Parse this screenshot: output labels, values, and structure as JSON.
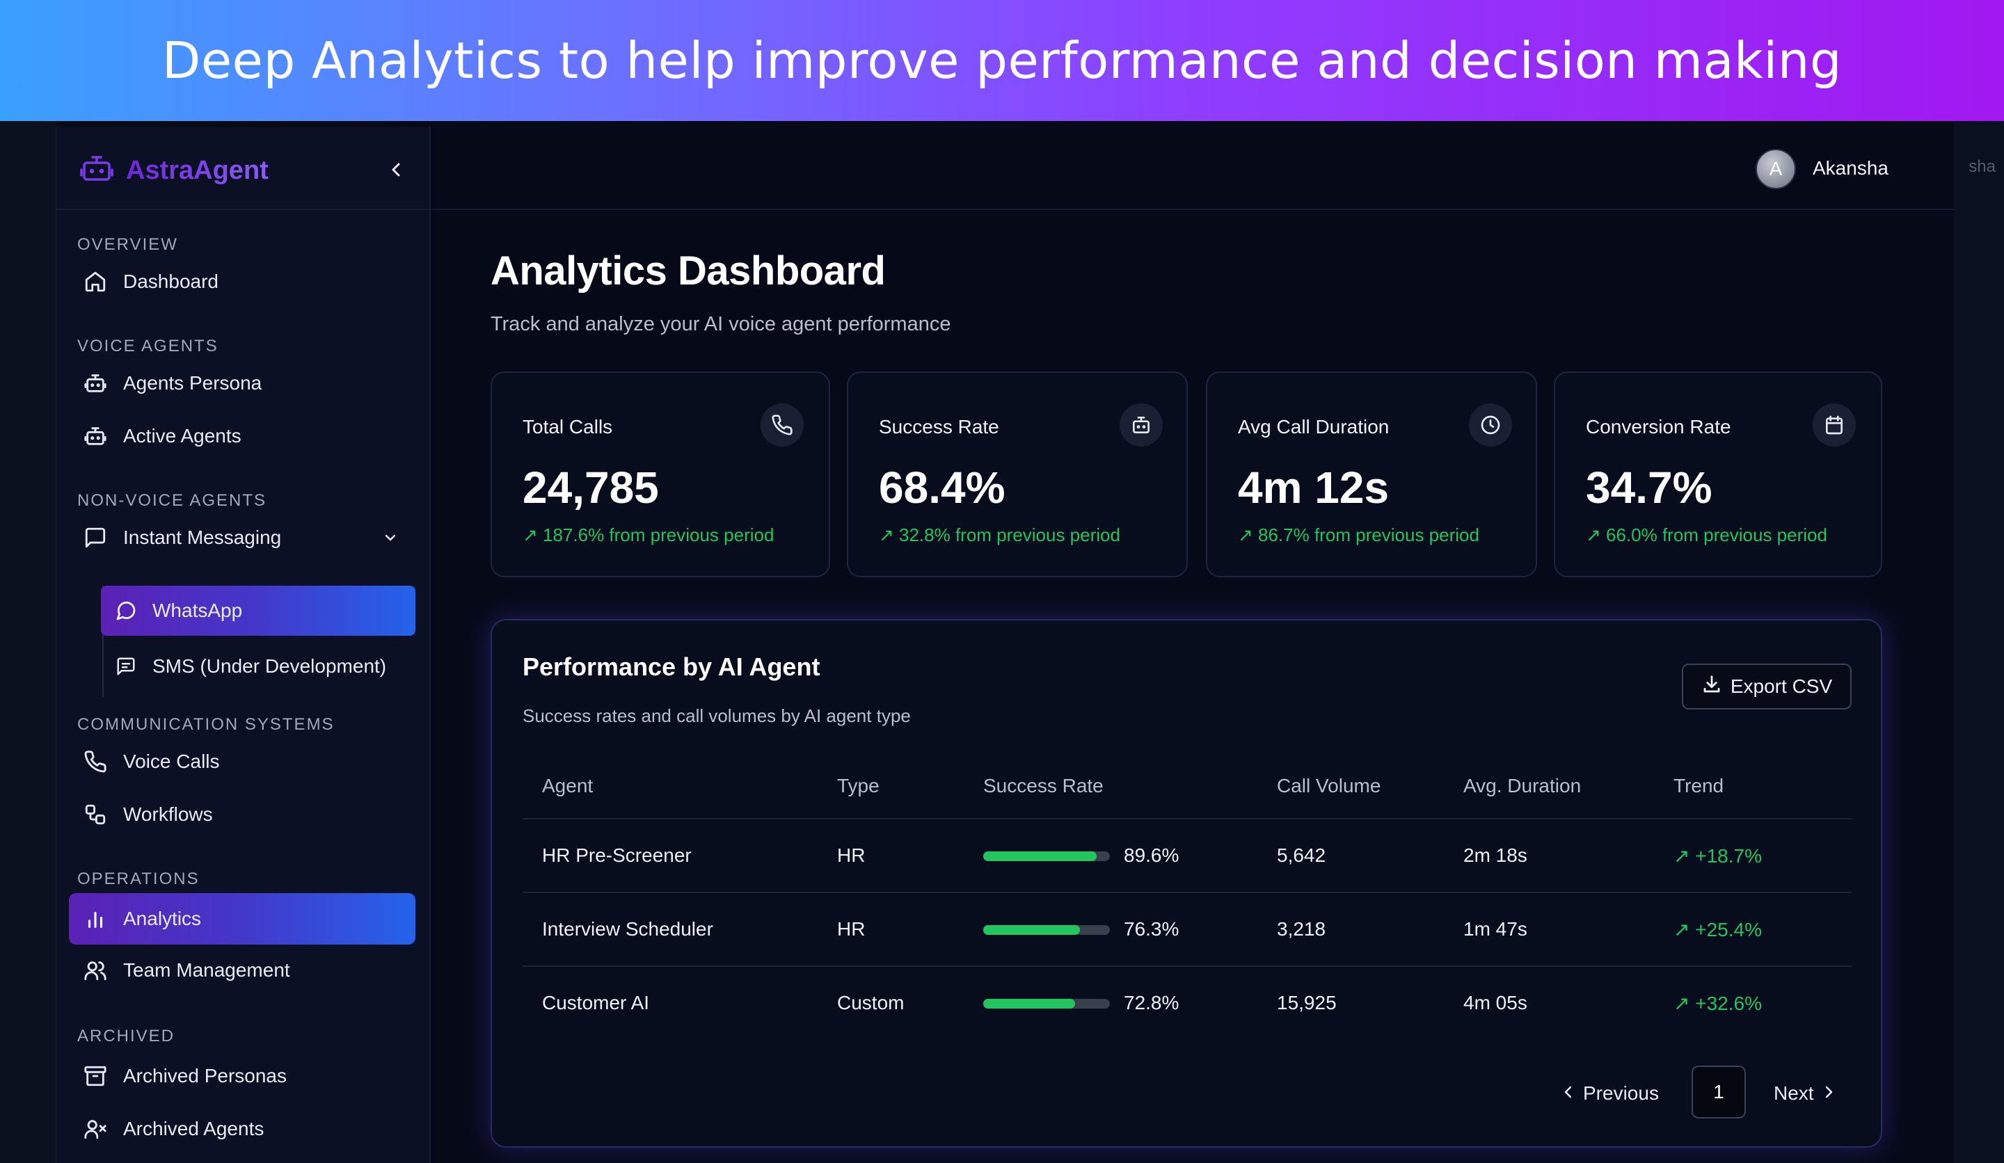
{
  "banner": {
    "text": "Deep Analytics to help improve performance and decision making"
  },
  "frame": {
    "ghost_text": "sha"
  },
  "brand": {
    "name": "AstraAgent"
  },
  "user": {
    "initial": "A",
    "name": "Akansha"
  },
  "sidebar": {
    "sections": {
      "overview": "OVERVIEW",
      "voice_agents": "VOICE AGENTS",
      "non_voice_agents": "NON-VOICE AGENTS",
      "communication_systems": "COMMUNICATION SYSTEMS",
      "operations": "OPERATIONS",
      "archived": "ARCHIVED"
    },
    "items": {
      "dashboard": "Dashboard",
      "agents_persona": "Agents Persona",
      "active_agents": "Active Agents",
      "instant_messaging": "Instant Messaging",
      "whatsapp": "WhatsApp",
      "sms": "SMS (Under Development)",
      "voice_calls": "Voice Calls",
      "workflows": "Workflows",
      "analytics": "Analytics",
      "team_management": "Team Management",
      "archived_personas": "Archived Personas",
      "archived_agents": "Archived Agents"
    },
    "active_item": "Analytics"
  },
  "page": {
    "title": "Analytics Dashboard",
    "subtitle": "Track and analyze your AI voice agent performance"
  },
  "stats": [
    {
      "title": "Total Calls",
      "value": "24,785",
      "delta": "187.6% from previous period",
      "icon": "phone-icon"
    },
    {
      "title": "Success Rate",
      "value": "68.4%",
      "delta": "32.8% from previous period",
      "icon": "bot-icon"
    },
    {
      "title": "Avg Call Duration",
      "value": "4m 12s",
      "delta": "86.7% from previous period",
      "icon": "clock-icon"
    },
    {
      "title": "Conversion Rate",
      "value": "34.7%",
      "delta": "66.0% from previous period",
      "icon": "calendar-icon"
    }
  ],
  "performance": {
    "title": "Performance by AI Agent",
    "subtitle": "Success rates and call volumes by AI agent type",
    "export_label": "Export CSV",
    "columns": [
      "Agent",
      "Type",
      "Success Rate",
      "Call Volume",
      "Avg. Duration",
      "Trend"
    ],
    "rows": [
      {
        "agent": "HR Pre-Screener",
        "type": "HR",
        "success_rate": "89.6%",
        "success_fraction": 0.896,
        "call_volume": "5,642",
        "avg_duration": "2m 18s",
        "trend": "+18.7%"
      },
      {
        "agent": "Interview Scheduler",
        "type": "HR",
        "success_rate": "76.3%",
        "success_fraction": 0.763,
        "call_volume": "3,218",
        "avg_duration": "1m 47s",
        "trend": "+25.4%"
      },
      {
        "agent": "Customer AI",
        "type": "Custom",
        "success_rate": "72.8%",
        "success_fraction": 0.728,
        "call_volume": "15,925",
        "avg_duration": "4m 05s",
        "trend": "+32.6%"
      }
    ],
    "pagination": {
      "previous": "Previous",
      "page": "1",
      "next": "Next"
    }
  },
  "colors": {
    "accent": "#5b21b6",
    "accent2": "#2563eb",
    "positive": "#22c55e",
    "brand": "#7c3aed"
  }
}
